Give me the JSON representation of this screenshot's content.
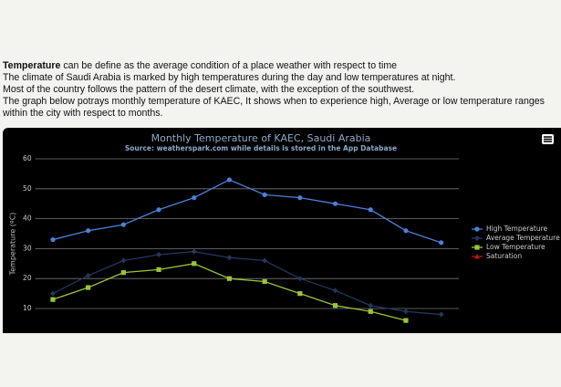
{
  "intro": {
    "term": "Temperature",
    "definition": "can be define as the average condition of a place weather with respect to time",
    "lines": [
      "The climate of Saudi Arabia is marked by high temperatures during the day and low temperatures at night.",
      "Most of the country follows the pattern of the desert climate, with the exception of the southwest.",
      "The graph below potrays monthly temperature of KAEC, It shows when to experience high, Average or low temperature ranges within the city with respect to months."
    ]
  },
  "chart_data": {
    "type": "line",
    "title": "Monthly Temperature of KAEC, Saudi Arabia",
    "subtitle": "Source: weatherspark.com while details is stored in the App Database",
    "y_label": "Temperature (ºC)",
    "categories": [
      null,
      null,
      null,
      null,
      null,
      null,
      null,
      null,
      null,
      null,
      null,
      null
    ],
    "series": [
      {
        "name": "High Temperature",
        "color": "#4a80d8",
        "marker": "circle",
        "values": [
          33,
          36,
          38,
          43,
          47,
          53,
          48,
          47,
          45,
          43,
          36,
          32
        ]
      },
      {
        "name": "Average Temperature",
        "color": "#23365e",
        "marker": "diamond",
        "values": [
          15,
          21,
          26,
          28,
          29,
          27,
          26,
          20,
          16,
          11,
          9,
          8
        ]
      },
      {
        "name": "Low Temperature",
        "color": "#9ac43a",
        "marker": "square",
        "values": [
          13,
          17,
          22,
          23,
          25,
          20,
          19,
          15,
          11,
          9,
          6,
          null
        ]
      },
      {
        "name": "Saturation",
        "color": "#b01818",
        "marker": "triangle",
        "values": [
          null,
          null,
          null,
          null,
          null,
          null,
          null,
          null,
          null,
          null,
          null,
          null
        ]
      }
    ],
    "ylim": [
      0,
      60
    ],
    "yticks": [
      10,
      20,
      30,
      40,
      50,
      60
    ],
    "grid": true,
    "legend": "right"
  }
}
